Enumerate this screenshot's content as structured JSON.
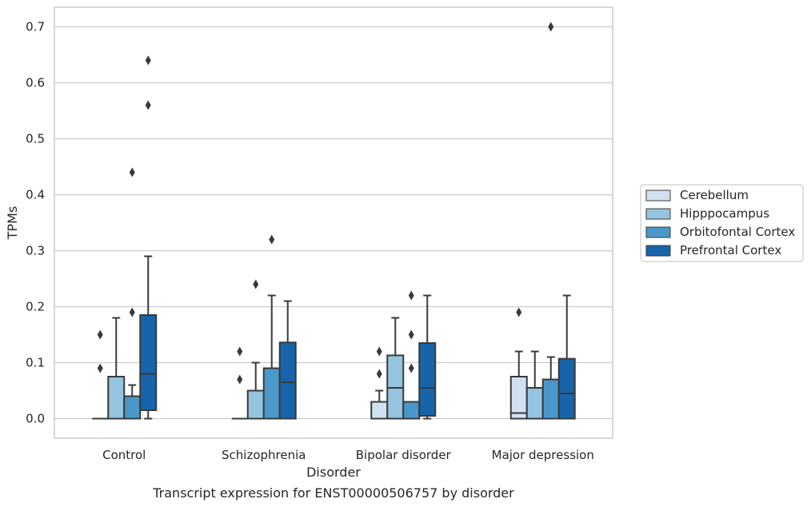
{
  "chart_data": {
    "type": "boxplot",
    "caption": "Transcript expression for ENST00000506757 by disorder",
    "xlabel": "Disorder",
    "ylabel": "TPMs",
    "ylim": [
      -0.035,
      0.735
    ],
    "yticks": [
      0.0,
      0.1,
      0.2,
      0.3,
      0.4,
      0.5,
      0.6,
      0.7
    ],
    "ytick_labels": [
      "0.0",
      "0.1",
      "0.2",
      "0.3",
      "0.4",
      "0.5",
      "0.6",
      "0.7"
    ],
    "grid": "horizontal",
    "legend_position": "right",
    "categories": [
      "Control",
      "Schizophrenia",
      "Bipolar disorder",
      "Major depression"
    ],
    "series": [
      {
        "name": "Cerebellum",
        "color": "#d0e1f2",
        "boxes": [
          {
            "q1": 0.0,
            "median": 0.0,
            "q3": 0.0,
            "whisker_low": 0.0,
            "whisker_high": 0.0,
            "outliers": [
              0.09,
              0.15
            ]
          },
          {
            "q1": 0.0,
            "median": 0.0,
            "q3": 0.0,
            "whisker_low": 0.0,
            "whisker_high": 0.0,
            "outliers": [
              0.07,
              0.12
            ]
          },
          {
            "q1": 0.0,
            "median": 0.0,
            "q3": 0.03,
            "whisker_low": 0.0,
            "whisker_high": 0.05,
            "outliers": [
              0.08,
              0.12
            ]
          },
          {
            "q1": 0.0,
            "median": 0.01,
            "q3": 0.075,
            "whisker_low": 0.0,
            "whisker_high": 0.12,
            "outliers": [
              0.19
            ]
          }
        ]
      },
      {
        "name": "Hipppocampus",
        "color": "#94c4df",
        "boxes": [
          {
            "q1": 0.0,
            "median": 0.0,
            "q3": 0.075,
            "whisker_low": 0.0,
            "whisker_high": 0.18,
            "outliers": []
          },
          {
            "q1": 0.0,
            "median": 0.0,
            "q3": 0.05,
            "whisker_low": 0.0,
            "whisker_high": 0.1,
            "outliers": [
              0.24
            ]
          },
          {
            "q1": 0.0,
            "median": 0.055,
            "q3": 0.113,
            "whisker_low": 0.0,
            "whisker_high": 0.18,
            "outliers": []
          },
          {
            "q1": 0.0,
            "median": 0.0,
            "q3": 0.055,
            "whisker_low": 0.0,
            "whisker_high": 0.12,
            "outliers": []
          }
        ]
      },
      {
        "name": "Orbitofontal Cortex",
        "color": "#4a98c9",
        "boxes": [
          {
            "q1": 0.0,
            "median": 0.0,
            "q3": 0.04,
            "whisker_low": 0.0,
            "whisker_high": 0.06,
            "outliers": [
              0.19,
              0.44
            ]
          },
          {
            "q1": 0.0,
            "median": 0.0,
            "q3": 0.09,
            "whisker_low": 0.0,
            "whisker_high": 0.22,
            "outliers": [
              0.32
            ]
          },
          {
            "q1": 0.0,
            "median": 0.0,
            "q3": 0.03,
            "whisker_low": 0.0,
            "whisker_high": 0.03,
            "outliers": [
              0.09,
              0.15,
              0.22
            ]
          },
          {
            "q1": 0.0,
            "median": 0.0,
            "q3": 0.07,
            "whisker_low": 0.0,
            "whisker_high": 0.11,
            "outliers": [
              0.7
            ]
          }
        ]
      },
      {
        "name": "Prefrontal Cortex",
        "color": "#1764ab",
        "boxes": [
          {
            "q1": 0.015,
            "median": 0.08,
            "q3": 0.185,
            "whisker_low": 0.0,
            "whisker_high": 0.29,
            "outliers": [
              0.56,
              0.64
            ]
          },
          {
            "q1": 0.0,
            "median": 0.065,
            "q3": 0.136,
            "whisker_low": 0.0,
            "whisker_high": 0.21,
            "outliers": []
          },
          {
            "q1": 0.005,
            "median": 0.055,
            "q3": 0.135,
            "whisker_low": 0.0,
            "whisker_high": 0.22,
            "outliers": []
          },
          {
            "q1": 0.0,
            "median": 0.045,
            "q3": 0.107,
            "whisker_low": 0.0,
            "whisker_high": 0.22,
            "outliers": []
          }
        ]
      }
    ]
  }
}
